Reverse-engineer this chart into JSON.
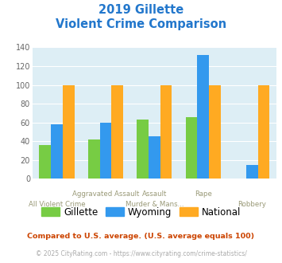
{
  "title_line1": "2019 Gillette",
  "title_line2": "Violent Crime Comparison",
  "gillette": [
    36,
    42,
    63,
    66,
    0
  ],
  "wyoming": [
    58,
    60,
    45,
    132,
    15
  ],
  "national": [
    100,
    100,
    100,
    100,
    100
  ],
  "color_gillette": "#77cc44",
  "color_wyoming": "#3399ee",
  "color_national": "#ffaa22",
  "color_title": "#2277cc",
  "color_bg": "#ddeef5",
  "ylabel_max": 140,
  "yticks": [
    0,
    20,
    40,
    60,
    80,
    100,
    120,
    140
  ],
  "top_labels": [
    "",
    "Aggravated Assault",
    "Assault",
    "Rape",
    ""
  ],
  "bottom_labels": [
    "All Violent Crime",
    "",
    "Murder & Mans...",
    "",
    "Robbery"
  ],
  "footnote1": "Compared to U.S. average. (U.S. average equals 100)",
  "footnote2": "© 2025 CityRating.com - https://www.cityrating.com/crime-statistics/",
  "footnote1_color": "#cc4400",
  "footnote2_color": "#aaaaaa",
  "legend_labels": [
    "Gillette",
    "Wyoming",
    "National"
  ]
}
